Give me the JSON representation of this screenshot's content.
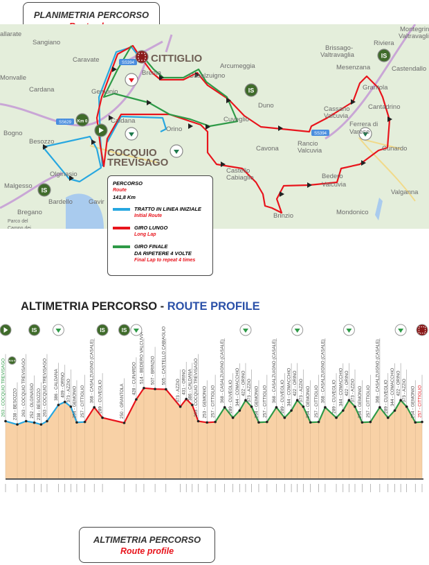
{
  "plan": {
    "title": "PLANIMETRIA PERCORSO",
    "subtitle": "Route plan"
  },
  "map": {
    "towns": [
      "allarate",
      "Sangiano",
      "Caravate",
      "Monvalle",
      "Cardana",
      "Gemonio",
      "Bogno",
      "Besozzo",
      "Caldana",
      "Orino",
      "Olginasio",
      "Malgesso",
      "Bardello",
      "Bregano",
      "Gavir",
      "Brenta",
      "Casalzuigno",
      "Arcumeggia",
      "Duno",
      "Cuveglio",
      "Cavona",
      "Rancio",
      "Valcuvia",
      "Cassano",
      "Valcuvia",
      "Brissago-",
      "Valtravaglia",
      "Mesenzana",
      "Riviera",
      "Montegrino",
      "Valtravaglia",
      "Castendallo",
      "Grantola",
      "Cantadrino",
      "Ferrera di",
      "Varese",
      "Cunardo",
      "Bedero",
      "Valcuvia",
      "Castello",
      "Cabiaglio",
      "Brinzio",
      "Mondonico",
      "Valganna",
      "Parco del",
      "Campo dei"
    ],
    "big_towns": [
      "CITTIGLIO",
      "COCQUIO",
      "TREVISAGO"
    ],
    "road_labels": [
      "SS629",
      "SS394",
      "SS394"
    ],
    "km0_label": "Km 0",
    "is_label": "IS",
    "colors": {
      "initial": "#27a7e0",
      "long_lap": "#e8141c",
      "final_lap": "#2e9a47",
      "land": "#e4eedb",
      "marker": "#3f6b2a"
    }
  },
  "legend": {
    "title": "PERCORSO",
    "title_en": "Route",
    "distance": "141,8 Km",
    "items": [
      {
        "label": "TRATTO IN LINEA INIZIALE",
        "label_en": "Initial Route",
        "color": "#27a7e0"
      },
      {
        "label": "GIRO LUNGO",
        "label_en": "Long Lap",
        "color": "#e8141c"
      },
      {
        "label": "GIRO FINALE",
        "label2": "DA RIPETERE 4 VOLTE",
        "label_en": "Final Lap to repeat 4 times",
        "color": "#2e9a47"
      }
    ]
  },
  "profile": {
    "title": "ALTIMETRIA PERCORSO - ",
    "title_en": "ROUTE PROFILE",
    "box_title": "ALTIMETRIA PERCORSO",
    "box_subtitle": "Route profile"
  },
  "chart_data": {
    "type": "area",
    "xlabel": "",
    "ylabel": "",
    "segments": [
      {
        "name": "TRATTO IN LINEA INIZIALE",
        "from_km": 0,
        "to_km": 27.0,
        "color": "#27a7e0"
      },
      {
        "name": "GIRO LUNGO",
        "from_km": 27.0,
        "to_km": 71.4,
        "color": "#e8141c"
      },
      {
        "name": "GIRO FINALE",
        "from_km": 71.4,
        "to_km": 141.8,
        "color": "#2e9a47"
      }
    ],
    "points": [
      {
        "km": "0,0",
        "alt": 263,
        "place": "COCQUIO TREVISAGO",
        "start": true
      },
      {
        "km": "4,0",
        "alt": 238,
        "place": "BESOZZO"
      },
      {
        "km": "7,0",
        "alt": 263,
        "place": "COCQUIO TREVISAGO"
      },
      {
        "km": "9,8",
        "alt": 252,
        "place": "OLGINASIO"
      },
      {
        "km": "12,1",
        "alt": 238,
        "place": "BESOZZO"
      },
      {
        "km": "14,0",
        "alt": 263,
        "place": "COCQUIO TREVISAGO"
      },
      {
        "km": "18,0",
        "alt": 386,
        "place": "CALDANA"
      },
      {
        "km": "20,2",
        "alt": 409,
        "place": "ORINO"
      },
      {
        "km": "20,8",
        "alt": 373,
        "place": "AZZIO"
      },
      {
        "km": "24,2",
        "alt": 254,
        "place": "GEMONIO"
      },
      {
        "km": "27,0",
        "alt": 257,
        "place": "CITTIGLIO"
      },
      {
        "km": "30,2",
        "alt": 368,
        "place": "CASALZUIGNO (CASALE)"
      },
      {
        "km": "33,0",
        "alt": 289,
        "place": "CUVEGLIO"
      },
      {
        "km": "40,4",
        "alt": 250,
        "place": "GRANTOLA"
      },
      {
        "km": "44,5",
        "alt": 428,
        "place": "CUNARDO"
      },
      {
        "km": "47,1",
        "alt": 514,
        "place": "BEDERO VALCUVIA"
      },
      {
        "km": "50,9",
        "alt": 507,
        "place": "BRINZIO"
      },
      {
        "km": "54,6",
        "alt": 505,
        "place": "CASTELLO CABIAGLIO"
      },
      {
        "km": "59,5",
        "alt": 373,
        "place": "AZZIO"
      },
      {
        "km": "60,4",
        "alt": 431,
        "place": "ORINO"
      },
      {
        "km": "62,2",
        "alt": 386,
        "place": "CALDANA"
      },
      {
        "km": "65,6",
        "alt": 263,
        "place": "COCQUIO TREVISAGO"
      },
      {
        "km": "68,6",
        "alt": 253,
        "place": "GEMONIO"
      },
      {
        "km": "71,4",
        "alt": 257,
        "place": "CITTIGLIO"
      },
      {
        "km": "74,6",
        "alt": 368,
        "place": "CASALZUIGNO (CASALE)"
      },
      {
        "km": "77,4",
        "alt": 289,
        "place": "CUVEGLIO"
      },
      {
        "km": "79,7",
        "alt": 344,
        "place": "COMACCHIO"
      },
      {
        "km": "81,5",
        "alt": 422,
        "place": "ORINO"
      },
      {
        "km": "82,7",
        "alt": 373,
        "place": "AZZIO"
      },
      {
        "km": "86,2",
        "alt": 254,
        "place": "GEMONIO"
      },
      {
        "km": "89,0",
        "alt": 257,
        "place": "CITTIGLIO"
      },
      {
        "km": "92,2",
        "alt": 368,
        "place": "CASALZUIGNO (CASALE)"
      },
      {
        "km": "95,0",
        "alt": 289,
        "place": "CUVEGLIO"
      },
      {
        "km": "97,3",
        "alt": 344,
        "place": "COMACCHIO"
      },
      {
        "km": "99,1",
        "alt": 422,
        "place": "ORINO"
      },
      {
        "km": "100,3",
        "alt": 373,
        "place": "AZZIO"
      },
      {
        "km": "103,8",
        "alt": 254,
        "place": "GEMONIO"
      },
      {
        "km": "106,6",
        "alt": 257,
        "place": "CITTIGLIO"
      },
      {
        "km": "108,8",
        "alt": 368,
        "place": "CASALZUIGNO (CASALE)"
      },
      {
        "km": "112,6",
        "alt": 289,
        "place": "CUVEGLIO"
      },
      {
        "km": "114,9",
        "alt": 344,
        "place": "COMACCHIO"
      },
      {
        "km": "116,7",
        "alt": 422,
        "place": "ORINO"
      },
      {
        "km": "117,9",
        "alt": 373,
        "place": "AZZIO"
      },
      {
        "km": "121,4",
        "alt": 254,
        "place": "GEMONIO"
      },
      {
        "km": "124,2",
        "alt": 257,
        "place": "CITTIGLIO"
      },
      {
        "km": "127,4",
        "alt": 368,
        "place": "CASALZUIGNO (CASALE)"
      },
      {
        "km": "130,2",
        "alt": 289,
        "place": "CUVEGLIO"
      },
      {
        "km": "132,5",
        "alt": 344,
        "place": "COMACCHIO"
      },
      {
        "km": "134,3",
        "alt": 422,
        "place": "ORINO"
      },
      {
        "km": "136,5",
        "alt": 373,
        "place": "AZZIO"
      },
      {
        "km": "139,5",
        "alt": 254,
        "place": "GEMONIO"
      },
      {
        "km": "141,8",
        "alt": 257,
        "place": "CITTIGLIO",
        "finish": true
      }
    ],
    "markers": [
      {
        "km": 0,
        "icon": "start"
      },
      {
        "km": 2,
        "icon": "km0"
      },
      {
        "km": 9.8,
        "icon": "IS"
      },
      {
        "km": 18.0,
        "icon": "feed-zone-triangle"
      },
      {
        "km": 33.0,
        "icon": "IS"
      },
      {
        "km": 40.4,
        "icon": "IS"
      },
      {
        "km": 44.5,
        "icon": "feed-zone-triangle"
      },
      {
        "km": 81.5,
        "icon": "feed-zone-triangle"
      },
      {
        "km": 99.1,
        "icon": "feed-zone-triangle"
      },
      {
        "km": 116.7,
        "icon": "feed-zone-triangle"
      },
      {
        "km": 134.3,
        "icon": "feed-zone-triangle"
      },
      {
        "km": 141.8,
        "icon": "finish"
      }
    ],
    "fill_color": "#f8d1a6"
  }
}
